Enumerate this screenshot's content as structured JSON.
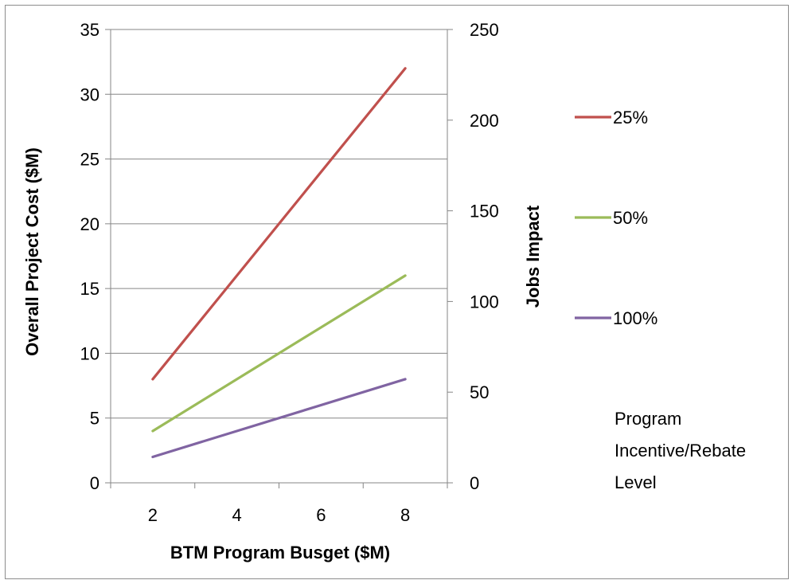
{
  "chart_data": {
    "type": "line",
    "x": [
      2,
      8
    ],
    "xlabel": "BTM Program Busget ($M)",
    "ylabel": "Overall Project Cost ($M)",
    "y2label": "Jobs Impact",
    "xticks": [
      2,
      4,
      6,
      8
    ],
    "yticks": [
      0,
      5,
      10,
      15,
      20,
      25,
      30,
      35
    ],
    "y2ticks": [
      0,
      50,
      100,
      150,
      200,
      250
    ],
    "xlim": [
      1,
      9
    ],
    "ylim": [
      0,
      35
    ],
    "y2lim": [
      0,
      250
    ],
    "grid": true,
    "legend_position": "right",
    "series": [
      {
        "name": "25%",
        "values": [
          8,
          32
        ],
        "color": "#c0504d"
      },
      {
        "name": "50%",
        "values": [
          4,
          16
        ],
        "color": "#9bbb59"
      },
      {
        "name": "100%",
        "values": [
          2,
          8
        ],
        "color": "#8064a2"
      }
    ],
    "annotation": [
      "Program",
      "Incentive/Rebate",
      "Level"
    ]
  }
}
